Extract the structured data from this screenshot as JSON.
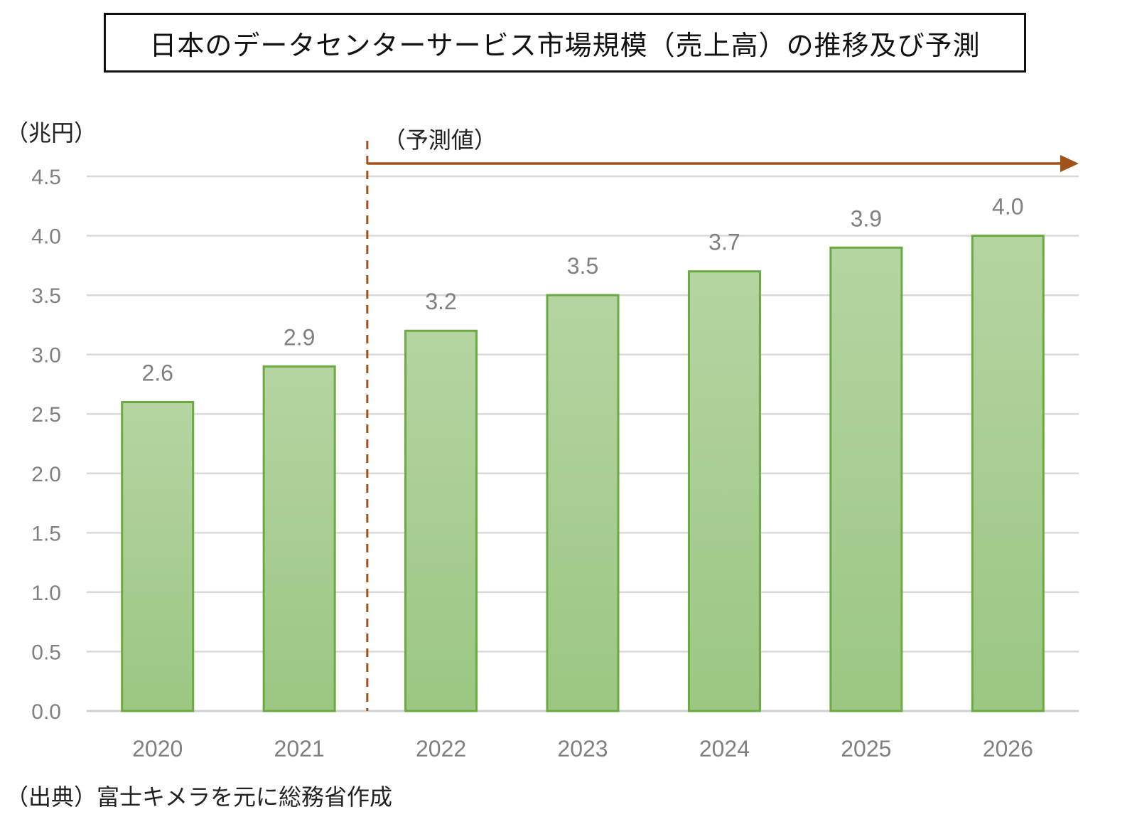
{
  "chart_data": {
    "type": "bar",
    "title": "日本のデータセンターサービス市場規模（売上高）の推移及び予測",
    "ylabel": "（兆円）",
    "categories": [
      "2020",
      "2021",
      "2022",
      "2023",
      "2024",
      "2025",
      "2026"
    ],
    "values": [
      2.6,
      2.9,
      3.2,
      3.5,
      3.7,
      3.9,
      4.0
    ],
    "data_labels": [
      "2.6",
      "2.9",
      "3.2",
      "3.5",
      "3.7",
      "3.9",
      "4.0"
    ],
    "ylim": [
      0,
      4.5
    ],
    "yticks": [
      "0.0",
      "0.5",
      "1.0",
      "1.5",
      "2.0",
      "2.5",
      "3.0",
      "3.5",
      "4.0",
      "4.5"
    ],
    "grid": true,
    "forecast_annotation": {
      "label": "（予測値）",
      "from_category": "2022"
    },
    "source": "（出典）富士キメラを元に総務省作成",
    "colors": {
      "bar_fill_top": "#b5d4a2",
      "bar_fill_bottom": "#9bc782",
      "bar_border": "#6aaa40",
      "forecast_marker": "#a0521a",
      "grid": "#d9d9d9",
      "tick_text": "#808080"
    }
  }
}
